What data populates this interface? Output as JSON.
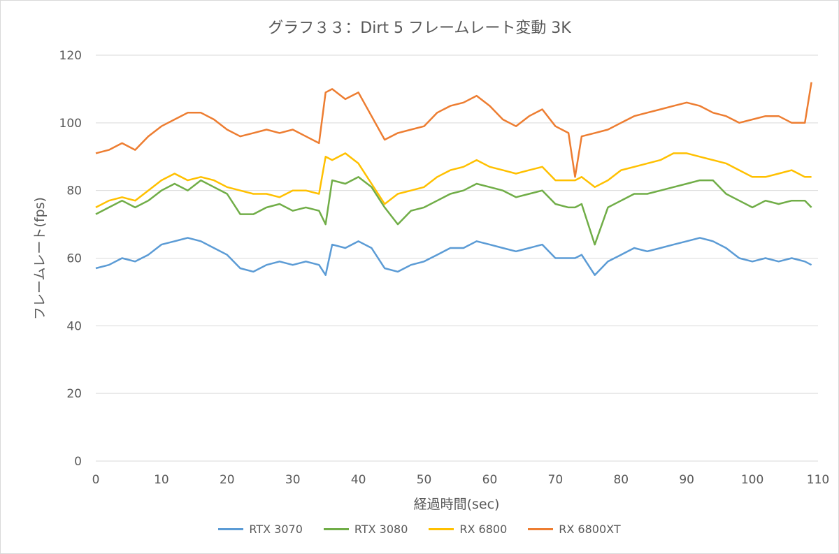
{
  "chart_data": {
    "type": "line",
    "title": "グラフ３３：Dirt 5 フレームレート変動 3K",
    "xlabel": "経過時間(sec)",
    "ylabel": "フレームレート(fps)",
    "xlim": [
      0,
      110
    ],
    "ylim": [
      0,
      120
    ],
    "x_ticks": [
      "0",
      "10",
      "20",
      "30",
      "40",
      "50",
      "60",
      "70",
      "80",
      "90",
      "100",
      "110"
    ],
    "y_ticks": [
      "0",
      "20",
      "40",
      "60",
      "80",
      "100",
      "120"
    ],
    "grid": "horizontal",
    "legend": "bottom",
    "x": [
      0,
      2,
      4,
      6,
      8,
      10,
      12,
      14,
      16,
      18,
      20,
      22,
      24,
      26,
      28,
      30,
      32,
      34,
      35,
      36,
      38,
      40,
      42,
      44,
      46,
      48,
      50,
      52,
      54,
      56,
      58,
      60,
      62,
      64,
      66,
      68,
      70,
      72,
      73,
      74,
      76,
      78,
      80,
      82,
      84,
      86,
      88,
      90,
      92,
      94,
      96,
      98,
      100,
      102,
      104,
      106,
      108,
      109
    ],
    "series": [
      {
        "name": "RTX 3070",
        "color": "#5b9bd5",
        "values": [
          57,
          58,
          60,
          59,
          61,
          64,
          65,
          66,
          65,
          63,
          61,
          57,
          56,
          58,
          59,
          58,
          59,
          58,
          55,
          64,
          63,
          65,
          63,
          57,
          56,
          58,
          59,
          61,
          63,
          63,
          65,
          64,
          63,
          62,
          63,
          64,
          60,
          60,
          60,
          61,
          55,
          59,
          61,
          63,
          62,
          63,
          64,
          65,
          66,
          65,
          63,
          60,
          59,
          60,
          59,
          60,
          59,
          58
        ]
      },
      {
        "name": "RTX 3080",
        "color": "#70ad47",
        "values": [
          73,
          75,
          77,
          75,
          77,
          80,
          82,
          80,
          83,
          81,
          79,
          73,
          73,
          75,
          76,
          74,
          75,
          74,
          70,
          83,
          82,
          84,
          81,
          75,
          70,
          74,
          75,
          77,
          79,
          80,
          82,
          81,
          80,
          78,
          79,
          80,
          76,
          75,
          75,
          76,
          64,
          75,
          77,
          79,
          79,
          80,
          81,
          82,
          83,
          83,
          79,
          77,
          75,
          77,
          76,
          77,
          77,
          75
        ]
      },
      {
        "name": "RX 6800",
        "color": "#ffc000",
        "values": [
          75,
          77,
          78,
          77,
          80,
          83,
          85,
          83,
          84,
          83,
          81,
          80,
          79,
          79,
          78,
          80,
          80,
          79,
          90,
          89,
          91,
          88,
          82,
          76,
          79,
          80,
          81,
          84,
          86,
          87,
          89,
          87,
          86,
          85,
          86,
          87,
          83,
          83,
          83,
          84,
          81,
          83,
          86,
          87,
          88,
          89,
          91,
          91,
          90,
          89,
          88,
          86,
          84,
          84,
          85,
          86,
          84,
          84
        ]
      },
      {
        "name": "RX 6800XT",
        "color": "#ed7d31",
        "values": [
          91,
          92,
          94,
          92,
          96,
          99,
          101,
          103,
          103,
          101,
          98,
          96,
          97,
          98,
          97,
          98,
          96,
          94,
          109,
          110,
          107,
          109,
          102,
          95,
          97,
          98,
          99,
          103,
          105,
          106,
          108,
          105,
          101,
          99,
          102,
          104,
          99,
          97,
          84,
          96,
          97,
          98,
          100,
          102,
          103,
          104,
          105,
          106,
          105,
          103,
          102,
          100,
          101,
          102,
          102,
          100,
          100,
          112
        ]
      }
    ]
  },
  "legend_items": [
    {
      "label": "RTX 3070"
    },
    {
      "label": "RTX 3080"
    },
    {
      "label": "RX 6800"
    },
    {
      "label": "RX 6800XT"
    }
  ]
}
